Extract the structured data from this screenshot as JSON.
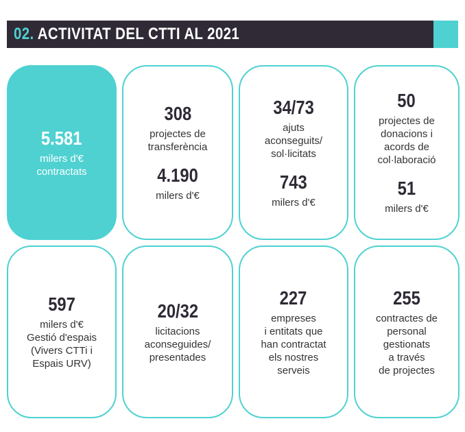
{
  "header": {
    "number": "02.",
    "title": "ACTIVITAT DEL CTTI AL 2021"
  },
  "cards": [
    {
      "highlight": true,
      "blocks": [
        {
          "number": "5.581",
          "lines": [
            "milers d'€",
            "contractats"
          ]
        }
      ]
    },
    {
      "highlight": false,
      "blocks": [
        {
          "number": "308",
          "lines": [
            "projectes de",
            "transferència"
          ]
        },
        {
          "number": "4.190",
          "lines": [
            "milers d'€"
          ]
        }
      ]
    },
    {
      "highlight": false,
      "blocks": [
        {
          "number": "34/73",
          "lines": [
            "ajuts",
            "aconseguits/",
            "sol·licitats"
          ]
        },
        {
          "number": "743",
          "lines": [
            "milers d'€"
          ]
        }
      ]
    },
    {
      "highlight": false,
      "blocks": [
        {
          "number": "50",
          "lines": [
            "projectes de",
            "donacions i",
            "acords de",
            "col·laboració"
          ]
        },
        {
          "number": "51",
          "lines": [
            "milers d'€"
          ]
        }
      ]
    },
    {
      "highlight": false,
      "blocks": [
        {
          "number": "597",
          "lines": [
            "milers d'€",
            "Gestió d'espais",
            "(Vivers CTTi i",
            "Espais URV)"
          ]
        }
      ]
    },
    {
      "highlight": false,
      "blocks": [
        {
          "number": "20/32",
          "lines": [
            "licitacions",
            "aconseguides/",
            "presentades"
          ]
        }
      ]
    },
    {
      "highlight": false,
      "blocks": [
        {
          "number": "227",
          "lines": [
            "empreses",
            "i entitats que",
            "han contractat",
            "els nostres",
            "serveis"
          ]
        }
      ]
    },
    {
      "highlight": false,
      "blocks": [
        {
          "number": "255",
          "lines": [
            "contractes de",
            "personal",
            "gestionats",
            "a través",
            "de projectes"
          ]
        }
      ]
    }
  ]
}
